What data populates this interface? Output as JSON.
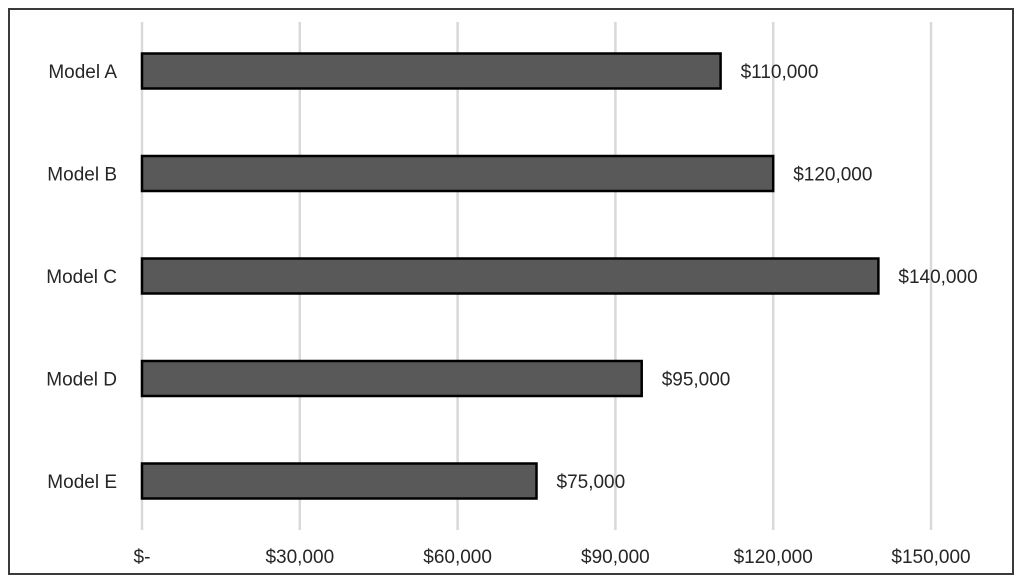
{
  "chart_data": {
    "type": "bar",
    "orientation": "horizontal",
    "title": "",
    "xlabel": "",
    "ylabel": "",
    "categories": [
      "Model A",
      "Model B",
      "Model C",
      "Model D",
      "Model E"
    ],
    "values": [
      110000,
      120000,
      140000,
      95000,
      75000
    ],
    "data_labels": [
      "$110,000",
      "$120,000",
      "$140,000",
      "$95,000",
      "$75,000"
    ],
    "xlim": [
      0,
      150000
    ],
    "x_ticks": [
      0,
      30000,
      60000,
      90000,
      120000,
      150000
    ],
    "x_tick_labels": [
      "$-",
      "$30,000",
      "$60,000",
      "$90,000",
      "$120,000",
      "$150,000"
    ],
    "grid": "vertical",
    "legend": "none",
    "colors": {
      "bar_fill": "#595959",
      "bar_stroke": "#000000",
      "grid": "#d9d9d9",
      "frame": "#3a3a3a",
      "text": "#262626"
    }
  }
}
